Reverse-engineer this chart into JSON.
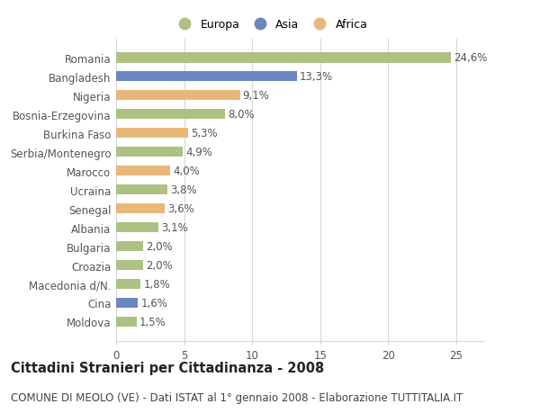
{
  "categories": [
    "Romania",
    "Bangladesh",
    "Nigeria",
    "Bosnia-Erzegovina",
    "Burkina Faso",
    "Serbia/Montenegro",
    "Marocco",
    "Ucraina",
    "Senegal",
    "Albania",
    "Bulgaria",
    "Croazia",
    "Macedonia d/N.",
    "Cina",
    "Moldova"
  ],
  "values": [
    24.6,
    13.3,
    9.1,
    8.0,
    5.3,
    4.9,
    4.0,
    3.8,
    3.6,
    3.1,
    2.0,
    2.0,
    1.8,
    1.6,
    1.5
  ],
  "labels": [
    "24,6%",
    "13,3%",
    "9,1%",
    "8,0%",
    "5,3%",
    "4,9%",
    "4,0%",
    "3,8%",
    "3,6%",
    "3,1%",
    "2,0%",
    "2,0%",
    "1,8%",
    "1,6%",
    "1,5%"
  ],
  "continents": [
    "Europa",
    "Asia",
    "Africa",
    "Europa",
    "Africa",
    "Europa",
    "Africa",
    "Europa",
    "Africa",
    "Europa",
    "Europa",
    "Europa",
    "Europa",
    "Asia",
    "Europa"
  ],
  "colors": {
    "Europa": "#adc183",
    "Asia": "#6b87c0",
    "Africa": "#e8b87a"
  },
  "title": "Cittadini Stranieri per Cittadinanza - 2008",
  "subtitle": "COMUNE DI MEOLO (VE) - Dati ISTAT al 1° gennaio 2008 - Elaborazione TUTTITALIA.IT",
  "xlim": [
    0,
    27
  ],
  "xticks": [
    0,
    5,
    10,
    15,
    20,
    25
  ],
  "background_color": "#ffffff",
  "grid_color": "#d8d8d8",
  "bar_height": 0.55,
  "title_fontsize": 10.5,
  "subtitle_fontsize": 8.5,
  "label_fontsize": 8.5,
  "tick_fontsize": 8.5,
  "legend_fontsize": 9
}
